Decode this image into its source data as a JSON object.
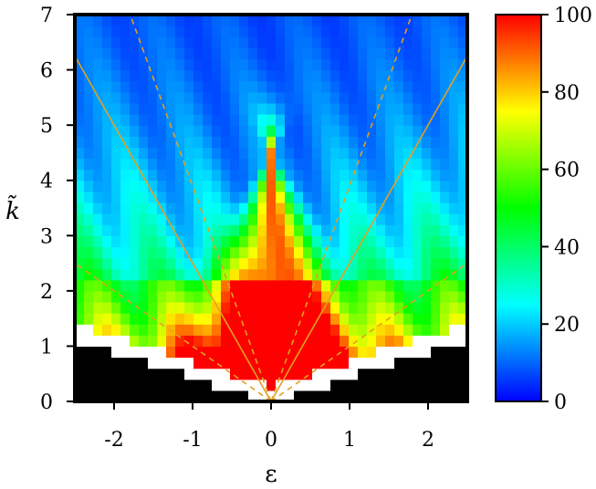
{
  "chart_data": {
    "type": "heatmap",
    "title": "",
    "xlabel": "ε",
    "ylabel": "k̃",
    "xlim": [
      -2.5,
      2.5
    ],
    "ylim": [
      0,
      7
    ],
    "x_ticks": [
      -2,
      -1,
      0,
      1,
      2
    ],
    "x_tick_labels": [
      "-2",
      "-1",
      "0",
      "1",
      "2"
    ],
    "y_ticks": [
      0,
      1,
      2,
      3,
      4,
      5,
      6,
      7
    ],
    "y_tick_labels": [
      "0",
      "1",
      "2",
      "3",
      "4",
      "5",
      "6",
      "7"
    ],
    "colorbar": {
      "range": [
        0,
        100
      ],
      "ticks": [
        0,
        20,
        40,
        60,
        80,
        100
      ],
      "tick_labels": [
        "0",
        "20",
        "40",
        "60",
        "80",
        "100"
      ],
      "colors": [
        "#0000ff",
        "#00ffff",
        "#00ff00",
        "#ffff00",
        "#ff0000"
      ]
    },
    "reference_lines": [
      {
        "style": "solid",
        "color": "#e3a020",
        "slope": 2.5
      },
      {
        "style": "dashed",
        "color": "#e3a020",
        "slope": 1.0
      },
      {
        "style": "dashed",
        "color": "#e3a020",
        "slope": 3.9
      }
    ],
    "grid": false
  }
}
